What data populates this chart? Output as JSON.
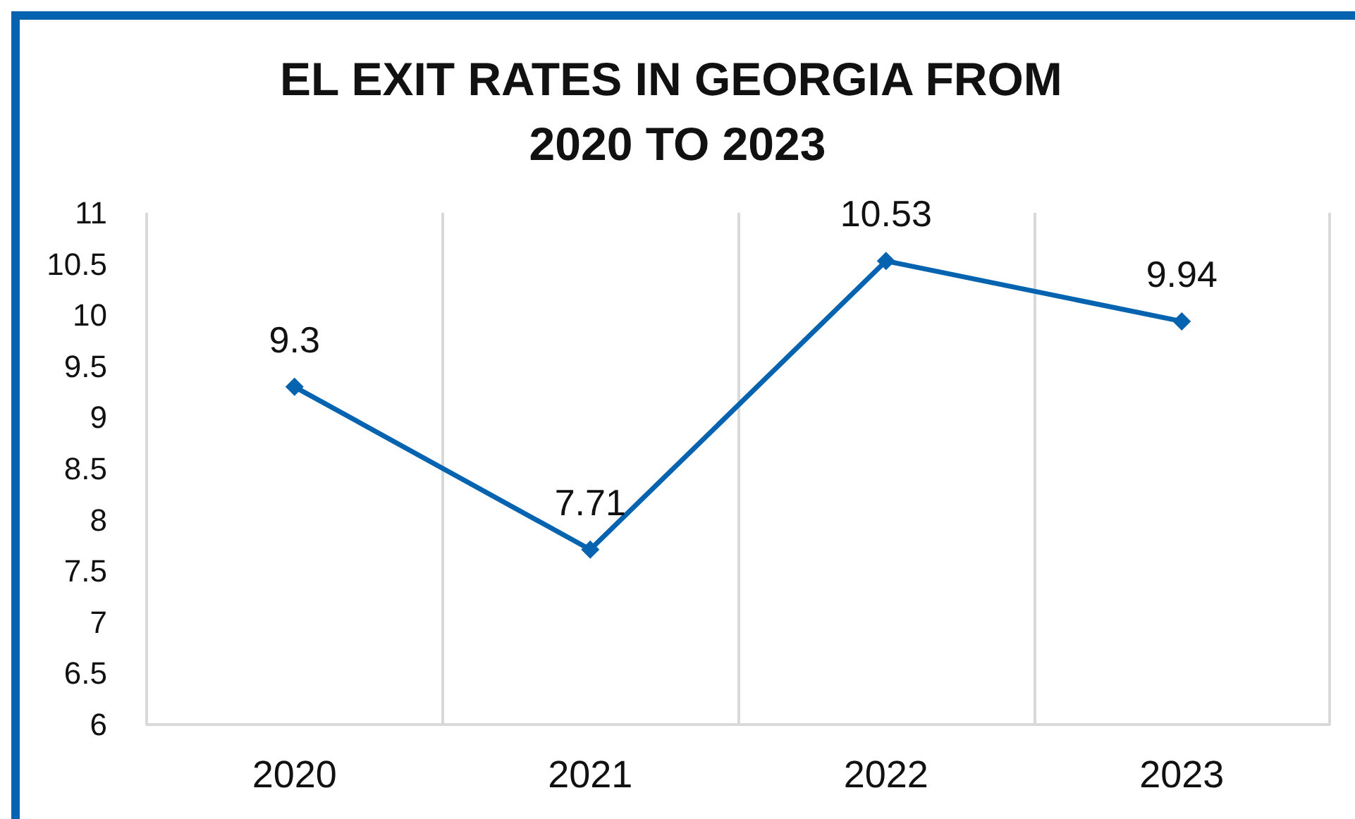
{
  "chart_data": {
    "type": "line",
    "title": "EL EXIT RATES IN GEORGIA FROM 2020 TO 2023",
    "categories": [
      "2020",
      "2021",
      "2022",
      "2023"
    ],
    "series": [
      {
        "color": "#0563b0",
        "values": [
          9.3,
          7.71,
          10.53,
          9.94
        ]
      }
    ],
    "ylim": [
      6,
      11
    ],
    "yticks": [
      6,
      6.5,
      7,
      7.5,
      8,
      8.5,
      9,
      9.5,
      10,
      10.5,
      11
    ],
    "grid": "x",
    "marker": "diamond",
    "line_style": "solid",
    "data_labels": true
  }
}
